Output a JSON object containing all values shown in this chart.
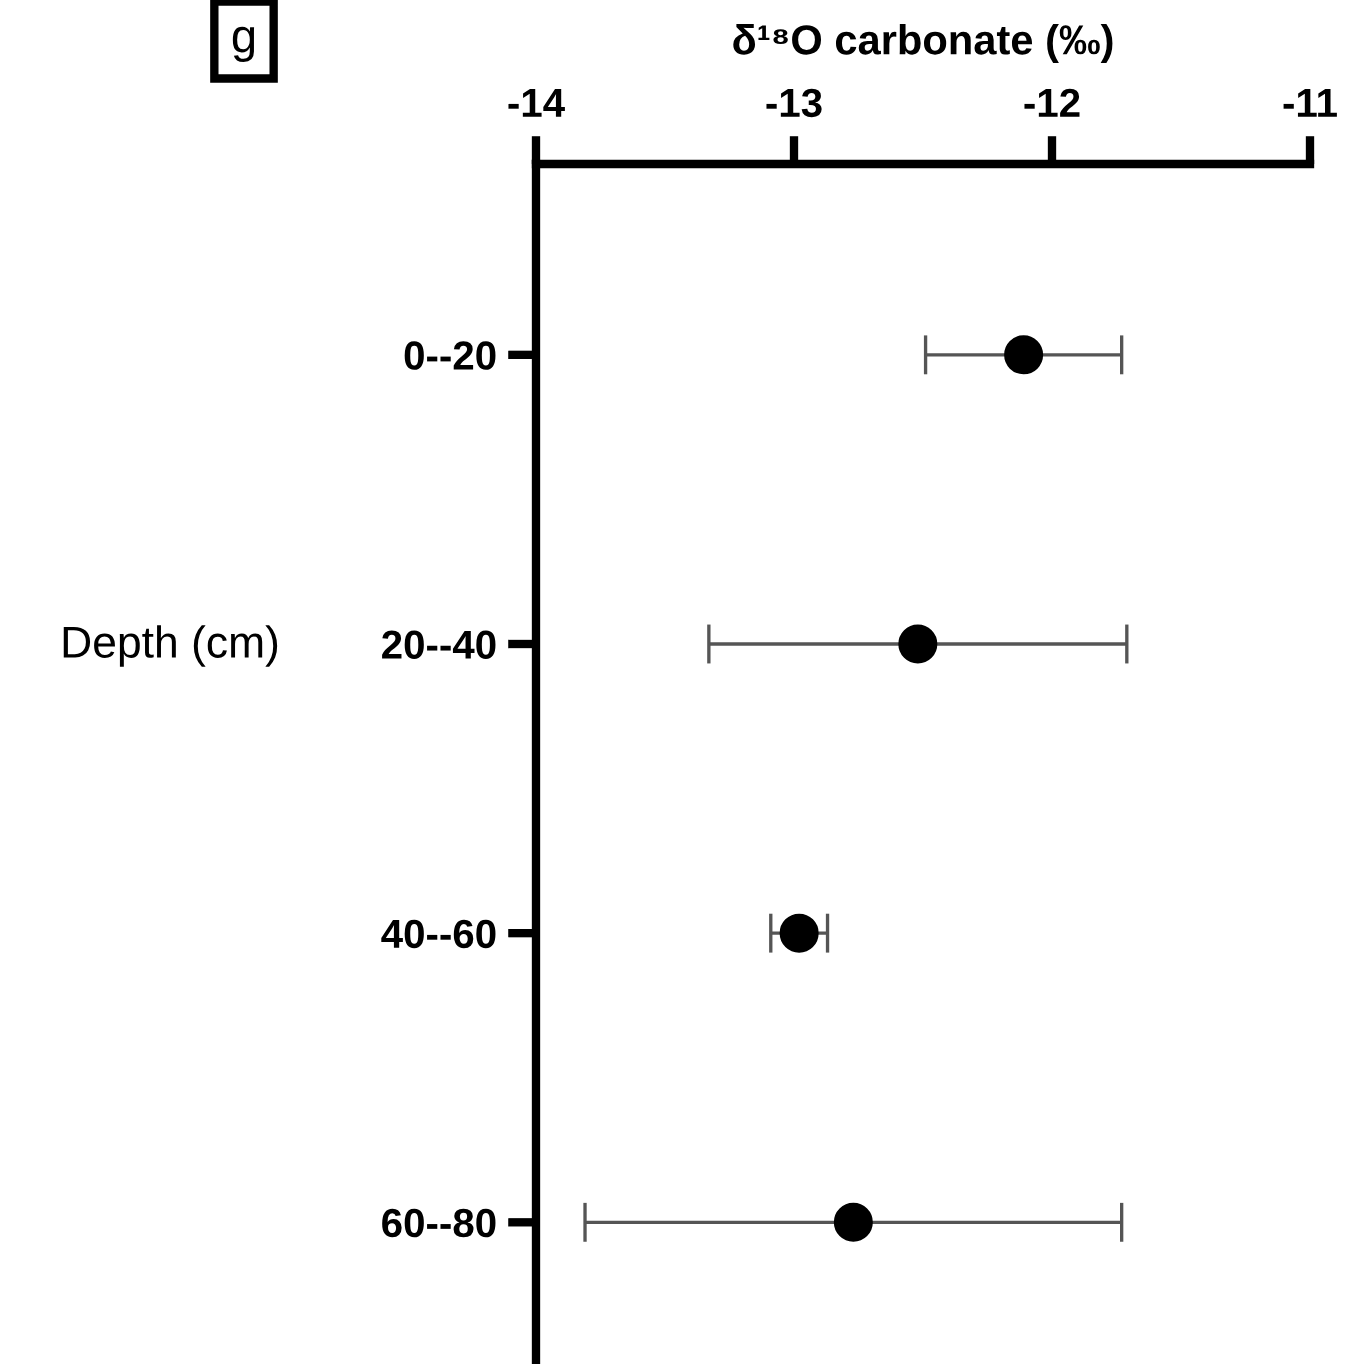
{
  "chart_data": {
    "type": "scatter",
    "orientation": "horizontal",
    "title": "g",
    "xlabel": "δ¹⁸O carbonate (‰)",
    "ylabel": "Depth (cm)",
    "categories": [
      "0--20",
      "20--40",
      "40--60",
      "60--80"
    ],
    "values": [
      -12.11,
      -12.52,
      -12.98,
      -12.77
    ],
    "errors": [
      0.38,
      0.81,
      0.11,
      1.04
    ],
    "color": "#000000",
    "marker": "circle",
    "grid": false,
    "legend": false,
    "xlim": [
      -14,
      -11
    ],
    "xticks": [
      -14,
      -13,
      -12,
      -11
    ]
  }
}
